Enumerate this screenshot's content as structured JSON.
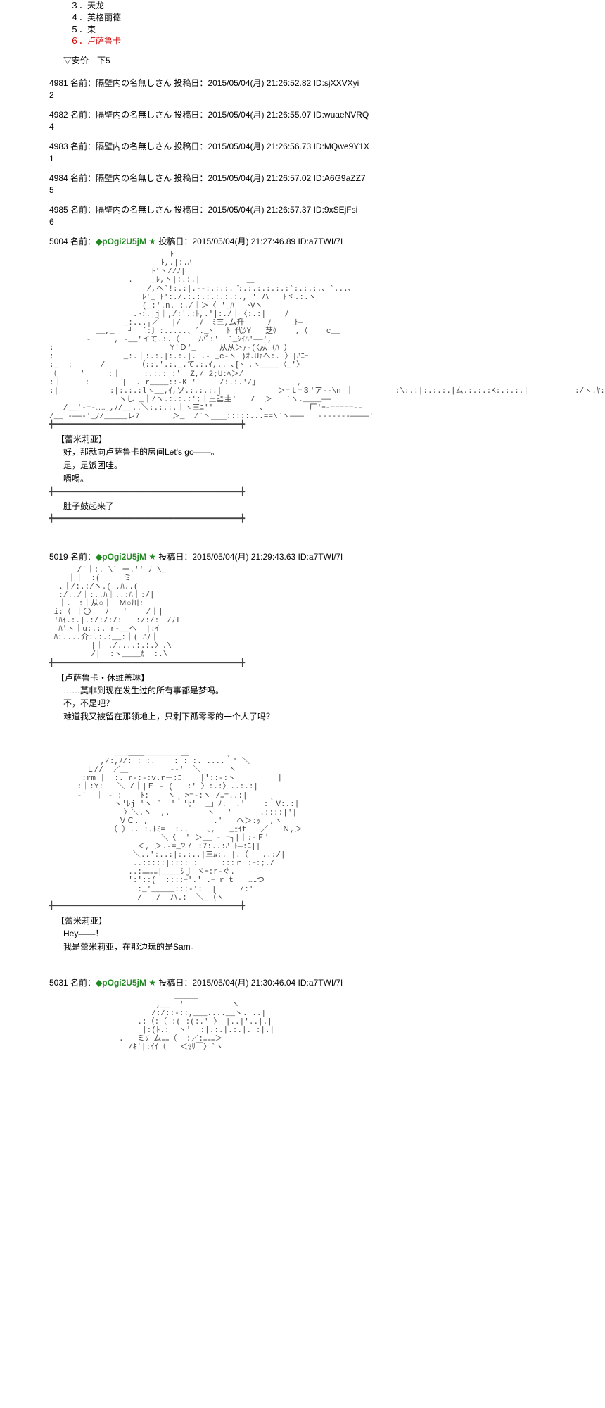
{
  "options": {
    "items": [
      "３．天龙",
      "４．英格丽德",
      "５．束",
      "６．卢萨鲁卡"
    ],
    "highlighted_index": 3
  },
  "anka_text": "▽安价　下5",
  "posts": [
    {
      "num": "4981",
      "name": "隔壁内の名無しさん",
      "date": "2015/05/04(月) 21:26:52.82",
      "id": "sjXXVXyi",
      "body": "2",
      "trip": false
    },
    {
      "num": "4982",
      "name": "隔壁内の名無しさん",
      "date": "2015/05/04(月) 21:26:55.07",
      "id": "wuaeNVRQ",
      "body": "4",
      "trip": false
    },
    {
      "num": "4983",
      "name": "隔壁内の名無しさん",
      "date": "2015/05/04(月) 21:26:56.73",
      "id": "MQwe9Y1X",
      "body": "1",
      "trip": false
    },
    {
      "num": "4984",
      "name": "隔壁内の名無しさん",
      "date": "2015/05/04(月) 21:26:57.02",
      "id": "A6G9aZZ7",
      "body": "5",
      "trip": false
    },
    {
      "num": "4985",
      "name": "隔壁内の名無しさん",
      "date": "2015/05/04(月) 21:26:57.37",
      "id": "9xSEjFsi",
      "body": "6",
      "trip": false
    }
  ],
  "story_posts": [
    {
      "num": "5004",
      "trip_name": "◆pOgi2U5jM",
      "star": "★",
      "date": "2015/05/04(月) 21:27:46.89",
      "id": "a7TWI/7l",
      "aa": "                          ﾄ\n                        ﾄ,.|:.ﾊ\n                      ﾄ'ヽ//ﾉ|\n                 .    _ﾚ,ヽ|:.:.|          ＿\n                     /,へ`!:.:|.-‐:.:.:. ̄:.:.:.:.:.:`:.:.:.、`...、\n                    ﾚ'_ ﾄ':./.:.:.:.:.:.:., ' ハ   ﾄヾ.:.ヽ\n                    (_:'.n.|:./｜＞〈 '_ﾊ｜ ﾄVヽ\n                  .ﾄ:.|j｜,/:'.:ﾄ,.'|:./｜〈:.:|    ﾉ\n                _:...┐／｜ |/    ﾉ  ﾐ三,ム升     ﾉ     ﾄ—\n          __,_   ┘  ´:〕:.....、´._ﾄ|  ﾄ 代ﾂY   芝ｹ    ,（    c__\n        -     , -__'イて.:.（    ﾉﾊﾞ:'  `_ｼｲﾊ'――',\n:                         Y'Ｄ'_     从从＞ｧ-(〈从（ﾊ ）\n:               _:.｜:.:.|:.:.|. .‐ _c-ヽ )ｵ.Uｧへ:. 〉|ﾊﾆｰ\n:_  :      /       （::.'.:._.て.:.ｲ,.. ､[ﾄ .ヽ____〈_'〉\n（     '     :｜     :.:.: :'  Z,/ 2;U:ﾍ＞/\n:｜     :       |  . r____::-K '     /:.:.'/」        ,\n:|           :|:.:.:lヽ__,ｲ,ソ.:.:.:.|            ＞=ｔ=３'ア--\\n ｜         :\\:.:|:.:.:.|厶.:.:.:K:.:.:.|          :/ヽ.ﾔ:'ｒ,| |''ｰ-'_\n               ヽし _｜/ヽ.:.:.:';｜三≧圭'   /  ＞   `ヽ.____――\n   /__'-=-……_,ﾉ/__..＼:.:.:.｜ヽ三ﾆ''          、         厂'ｰ-=====--\n/__ -――-'_ﾉ/_____レ7       ＞_  /`ヽ＿＿:::::...==\\`ヽ―――   -----‐‐――――'\n╋━━━━━━━━━━━━━━━━━━━━━━━━━━━━━━━━━━━━━━━━╋",
      "speaker1": "【蕾米莉亚】",
      "dialogue1": [
        "好，那就向卢萨鲁卡的房间Let's go——。",
        "是，是饭团哇。",
        "嚼嚼。"
      ],
      "divider1": "╋━━━━━━━━━━━━━━━━━━━━━━━━━━━━━━━━━━━━━━━━╋",
      "mid_text": "肚子鼓起来了",
      "divider2": "╋━━━━━━━━━━━━━━━━━━━━━━━━━━━━━━━━━━━━━━━━╋"
    },
    {
      "num": "5019",
      "trip_name": "◆pOgi2U5jM",
      "star": "★",
      "date": "2015/05/04(月) 21:29:43.63",
      "id": "a7TWI/7l",
      "aa": "      /'｜:. \\` ー.'' ﾉ \\_\n    ｜｜　:(     ミ\n  .｜/:.:/ヽ.( ,ﾊ..(\n  :/../｜:..ﾊ｜..:ﾊ｜:/|\n  ｜.｜:｜从○｜｜Ｍ○川:|\n i:（ ｜〇   ﾉ   '    /｜|\n 'ﾊｲ.:.|.:/:/:/:   :/:/:｜/ﾉl\n  ﾊ'ヽ｜u:.:. r-__ヘ  |:ｲ\n ﾊ:....介:.:.:__:｜( ﾊﾉ｜\n         |｜ ./....:.:.〉.\\\n         /|  :ヽ____ｶ  :.\\\n╋━━━━━━━━━━━━━━━━━━━━━━━━━━━━━━━━━━━━━━━━╋",
      "speaker1": "【卢萨鲁卡・休维盖琳】",
      "dialogue1": [
        "……莫非到现在发生过的所有事都是梦吗。",
        "不，不是吧？",
        "难道我又被留在那领地上，只剩下孤零零的一个人了吗？"
      ],
      "aa2": "              ___＿＿________＿\n           ,/:,ﾉ/: : :.    : : :. ....｀' ＼\n        Ｌ//  ／＿         --'  ＼      ヽ\n       :rm |  :. r-:-:v.rー:ﾆ|   |'::-:ヽ         |\n      :｜:Y:   ＼ /｜|Ｆ - (   :' 〉:.:〉..:.:|\n      -'  ｜ - :    ﾄ:    ヽ  >=-:ヽ /ﾆ=..:|\n              ヽ'ﾚj 'ヽ `  '｀'ﾋ'  _」ﾉ.  .'    :｀V:.:|\n                〉＼.ヽ  ,.        ヽ　 '      .::::|'|\n               ＶＣ. ,              .'   ヘ＞:ｯ  ,ヽ\n             （ ）.. :.ﾄﾐ=  :..    ､,   _ｪｲf   ／   Ｎ,＞\n                        ＼〈  ' ＞__ - =┐|｜:-Ｆ'\n                   ＜, ＞.-=_?７ :7:..:ﾊ ﾄ―:ﾆ|| \n                  ＼..':..:|:.:..|三ﾑ:. |.（   ..:/|\n                  ..:::::|:::: :|    :::ｒ :ｰ:;./\n                 ..:ﾆﾆﾆﾆ|____ｼｊ ヾｰ:r‐ぐ.\n                 ':'::(  ::::ｰ'.' .ｰ r t   ……つ\n                   :_'_____:::-':  |     /:'\n                   /   /  ハ.:  ＼_（ヽ\n╋━━━━━━━━━━━━━━━━━━━━━━━━━━━━━━━━━━━━━━━━╋",
      "speaker2": "【蕾米莉亚】",
      "dialogue2": [
        "Hey——！",
        "我是蕾米莉亚，在那边玩的是Sam。"
      ]
    },
    {
      "num": "5031",
      "trip_name": "◆pOgi2U5jM",
      "star": "★",
      "date": "2015/05/04(月) 21:30:46.04",
      "id": "a7TWI/7l",
      "aa": "                           ＿＿＿\n                       ,__  '    　   　ヽ\n                      /:/::-::,___....__ヽ. ..|\n                   .:（:（ :( :(:.' 〉 |..|'..|.|\n                    |:(ﾄ.:  丶'  :|.:.|.:.|. :|.|\n               .   ミｿ ムﾆﾆ（  :／:ﾆﾆﾆ＞\n                 /ｷ'|:ｲｲ（   ＜ｾﾘ￣〉`ヽ"
    }
  ],
  "labels": {
    "name": "名前：",
    "post_date": "投稿日：",
    "id_prefix": "ID:"
  },
  "colors": {
    "green": "#228822",
    "red": "#cc0000"
  }
}
